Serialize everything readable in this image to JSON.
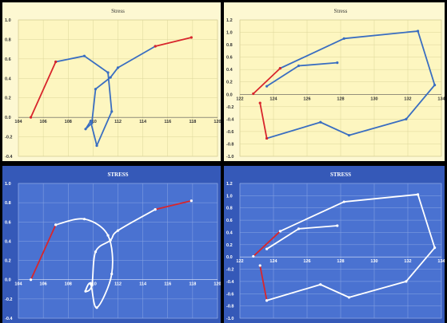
{
  "colors": {
    "cream_bg": "#fdf8d2",
    "cream_plot": "#fdf6c0",
    "cream_line": "#3a6ec1",
    "cream_grid": "#dcd59a",
    "blue_bg": "#3559b8",
    "blue_plot": "#4a72d1",
    "blue_line": "#ffffff",
    "blue_grid": "#8aa6e3",
    "highlight": "#d8262c",
    "cream_text": "#333333",
    "blue_text": "#ffffff"
  },
  "chart_data": [
    {
      "type": "line",
      "panel": "top-left",
      "style": "cream",
      "smooth": false,
      "title": "Stress",
      "xlim": [
        104,
        120
      ],
      "ylim": [
        -0.4,
        1.0
      ],
      "xticks": [
        104,
        106,
        108,
        110,
        112,
        114,
        116,
        118,
        120
      ],
      "yticks": [
        -0.4,
        -0.2,
        0.0,
        0.2,
        0.4,
        0.6,
        0.8,
        1.0
      ],
      "xtick_labels": [
        "104",
        "106",
        "108",
        "110",
        "112",
        "114",
        "116",
        "118",
        "120"
      ],
      "ytick_labels": [
        "-0.4",
        "-0.2",
        "0.0",
        "0.2",
        "0.4",
        "0.6",
        "0.8",
        "1.0"
      ],
      "series": [
        {
          "color": "blue",
          "x": [
            107.0,
            109.3,
            111.2,
            111.5,
            110.3,
            109.8,
            109.4,
            109.9,
            110.2,
            111.4,
            112.0,
            115.0
          ],
          "y": [
            0.57,
            0.63,
            0.46,
            0.06,
            -0.29,
            -0.04,
            -0.12,
            -0.06,
            0.29,
            0.41,
            0.51,
            0.73
          ]
        },
        {
          "color": "red",
          "x": [
            105.0,
            107.0
          ],
          "y": [
            0.0,
            0.57
          ]
        },
        {
          "color": "red",
          "x": [
            115.0,
            117.9
          ],
          "y": [
            0.73,
            0.82
          ]
        }
      ]
    },
    {
      "type": "line",
      "panel": "top-right",
      "style": "cream",
      "smooth": false,
      "title": "Stress",
      "xlim": [
        122,
        134
      ],
      "ylim": [
        -1.0,
        1.2
      ],
      "xticks": [
        122,
        124,
        126,
        128,
        130,
        132,
        134
      ],
      "yticks": [
        -1.0,
        -0.8,
        -0.6,
        -0.4,
        -0.2,
        0.0,
        0.2,
        0.4,
        0.6,
        0.8,
        1.0,
        1.2
      ],
      "xtick_labels": [
        "122",
        "124",
        "126",
        "128",
        "130",
        "132",
        "134"
      ],
      "ytick_labels": [
        "-1.0",
        "-0.8",
        "-0.6",
        "-0.4",
        "-0.2",
        "0.0",
        "0.2",
        "0.4",
        "0.6",
        "0.8",
        "1.0",
        "1.2"
      ],
      "series": [
        {
          "color": "blue",
          "x": [
            124.4,
            128.2,
            132.6,
            133.6,
            131.9,
            128.5,
            126.8,
            123.6
          ],
          "y": [
            0.42,
            0.9,
            1.02,
            0.15,
            -0.4,
            -0.66,
            -0.45,
            -0.71
          ]
        },
        {
          "color": "blue",
          "x": [
            123.6,
            125.5,
            127.8
          ],
          "y": [
            0.13,
            0.46,
            0.51
          ]
        },
        {
          "color": "red",
          "x": [
            122.8,
            124.4
          ],
          "y": [
            0.01,
            0.42
          ]
        },
        {
          "color": "red",
          "x": [
            123.2,
            123.6
          ],
          "y": [
            -0.14,
            -0.71
          ]
        }
      ]
    },
    {
      "type": "line",
      "panel": "bottom-left",
      "style": "blue",
      "smooth": true,
      "title": "STRESS",
      "xlim": [
        104,
        120
      ],
      "ylim": [
        -0.4,
        1.0
      ],
      "xticks": [
        104,
        106,
        108,
        110,
        112,
        114,
        116,
        118,
        120
      ],
      "yticks": [
        -0.4,
        -0.2,
        0.0,
        0.2,
        0.4,
        0.6,
        0.8,
        1.0
      ],
      "xtick_labels": [
        "104",
        "106",
        "108",
        "110",
        "112",
        "114",
        "116",
        "118",
        "120"
      ],
      "ytick_labels": [
        "-0.4",
        "-0.2",
        "0.0",
        "0.2",
        "0.4",
        "0.6",
        "0.8",
        "1.0"
      ],
      "series": [
        {
          "color": "white",
          "x": [
            107.0,
            109.3,
            111.2,
            111.5,
            110.3,
            109.8,
            109.4,
            109.9,
            110.2,
            111.4,
            112.0,
            115.0
          ],
          "y": [
            0.57,
            0.63,
            0.46,
            0.06,
            -0.29,
            -0.04,
            -0.12,
            -0.06,
            0.29,
            0.41,
            0.51,
            0.73
          ]
        },
        {
          "color": "red",
          "x": [
            105.0,
            107.0
          ],
          "y": [
            0.0,
            0.57
          ]
        },
        {
          "color": "red",
          "x": [
            115.0,
            117.9
          ],
          "y": [
            0.73,
            0.82
          ]
        }
      ]
    },
    {
      "type": "line",
      "panel": "bottom-right",
      "style": "blue",
      "smooth": false,
      "title": "STRESS",
      "xlim": [
        122,
        134
      ],
      "ylim": [
        -1.0,
        1.2
      ],
      "xticks": [
        122,
        124,
        126,
        128,
        130,
        132,
        134
      ],
      "yticks": [
        -1.0,
        -0.8,
        -0.6,
        -0.4,
        -0.2,
        0.0,
        0.2,
        0.4,
        0.6,
        0.8,
        1.0,
        1.2
      ],
      "xtick_labels": [
        "122",
        "124",
        "126",
        "128",
        "130",
        "132",
        "134"
      ],
      "ytick_labels": [
        "-1.0",
        "-0.8",
        "-0.6",
        "-0.4",
        "-0.2",
        "0.0",
        "0.2",
        "0.4",
        "0.6",
        "0.8",
        "1.0",
        "1.2"
      ],
      "series": [
        {
          "color": "white",
          "x": [
            124.4,
            128.2,
            132.6,
            133.6,
            131.9,
            128.5,
            126.8,
            123.6
          ],
          "y": [
            0.42,
            0.9,
            1.02,
            0.15,
            -0.4,
            -0.66,
            -0.45,
            -0.71
          ]
        },
        {
          "color": "white",
          "x": [
            123.6,
            125.5,
            127.8
          ],
          "y": [
            0.13,
            0.46,
            0.51
          ]
        },
        {
          "color": "red",
          "x": [
            122.8,
            124.4
          ],
          "y": [
            0.01,
            0.42
          ]
        },
        {
          "color": "red",
          "x": [
            123.2,
            123.6
          ],
          "y": [
            -0.14,
            -0.71
          ]
        }
      ]
    }
  ]
}
